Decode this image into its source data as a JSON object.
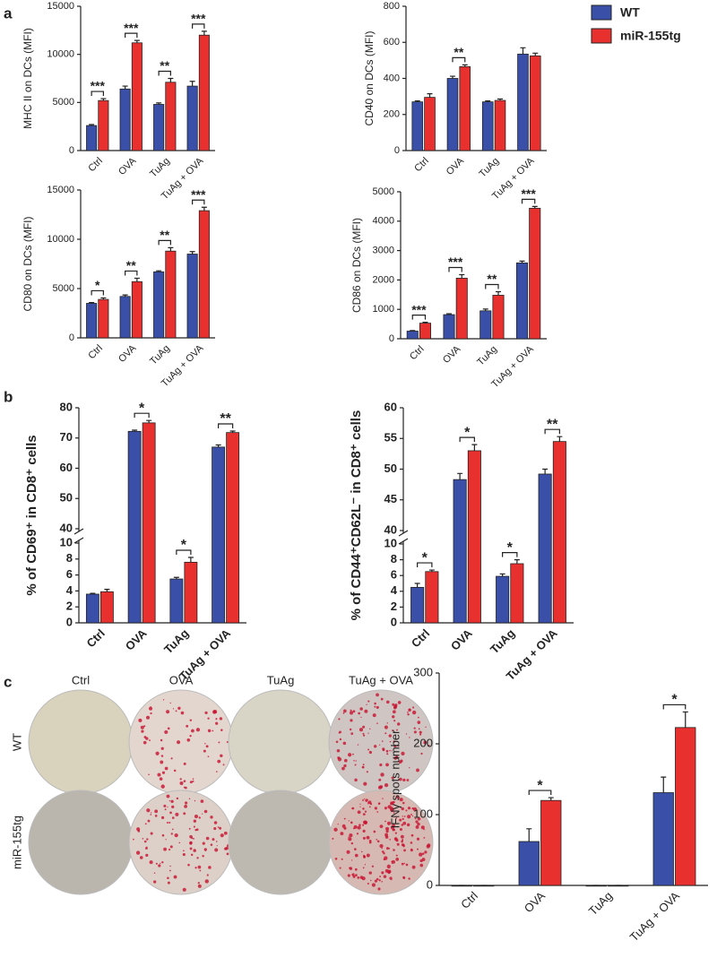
{
  "panel_labels": [
    "a",
    "b",
    "c"
  ],
  "wells": {
    "columns": [
      "Ctrl",
      "OVA",
      "TuAg",
      "TuAg + OVA"
    ],
    "rows": [
      "WT",
      "miR-155tg"
    ]
  },
  "chart_data": [
    {
      "type": "bar",
      "ylabel": "MHC II on DCs (MFI)",
      "categories": [
        "Ctrl",
        "OVA",
        "TuAg",
        "TuAg + OVA"
      ],
      "series": [
        {
          "name": "WT",
          "color": "#3a4fa8",
          "values": [
            2600,
            6400,
            4800,
            6700
          ],
          "errors": [
            100,
            300,
            150,
            500
          ]
        },
        {
          "name": "miR-155tg",
          "color": "#e8302f",
          "values": [
            5200,
            11200,
            7100,
            12000
          ],
          "errors": [
            200,
            250,
            400,
            400
          ]
        }
      ],
      "ylim": [
        0,
        15000
      ],
      "yticks": [
        0,
        5000,
        10000,
        15000
      ],
      "significance": [
        "***",
        "***",
        "**",
        "***"
      ]
    },
    {
      "type": "bar",
      "ylabel": "CD40 on DCs (MFI)",
      "categories": [
        "Ctrl",
        "OVA",
        "TuAg",
        "TuAg + OVA"
      ],
      "series": [
        {
          "name": "WT",
          "color": "#3a4fa8",
          "values": [
            270,
            400,
            270,
            535
          ],
          "errors": [
            5,
            12,
            5,
            35
          ]
        },
        {
          "name": "miR-155tg",
          "color": "#e8302f",
          "values": [
            295,
            465,
            278,
            525
          ],
          "errors": [
            20,
            10,
            8,
            15
          ]
        }
      ],
      "ylim": [
        0,
        800
      ],
      "yticks": [
        0,
        200,
        400,
        600,
        800
      ],
      "significance": [
        null,
        "**",
        null,
        null
      ]
    },
    {
      "type": "bar",
      "ylabel": "CD80 on DCs (MFI)",
      "categories": [
        "Ctrl",
        "OVA",
        "TuAg",
        "TuAg + OVA"
      ],
      "series": [
        {
          "name": "WT",
          "color": "#3a4fa8",
          "values": [
            3500,
            4200,
            6700,
            8500
          ],
          "errors": [
            80,
            150,
            100,
            250
          ]
        },
        {
          "name": "miR-155tg",
          "color": "#e8302f",
          "values": [
            3900,
            5700,
            8800,
            12900
          ],
          "errors": [
            150,
            350,
            350,
            350
          ]
        }
      ],
      "ylim": [
        0,
        15000
      ],
      "yticks": [
        0,
        5000,
        10000,
        15000
      ],
      "significance": [
        "*",
        "**",
        "**",
        "***"
      ]
    },
    {
      "type": "bar",
      "ylabel": "CD86 on DCs (MFI)",
      "categories": [
        "Ctrl",
        "OVA",
        "TuAg",
        "TuAg + OVA"
      ],
      "series": [
        {
          "name": "WT",
          "color": "#3a4fa8",
          "values": [
            260,
            820,
            950,
            2580
          ],
          "errors": [
            20,
            30,
            60,
            60
          ]
        },
        {
          "name": "miR-155tg",
          "color": "#e8302f",
          "values": [
            530,
            2060,
            1480,
            4440
          ],
          "errors": [
            30,
            120,
            120,
            60
          ]
        }
      ],
      "ylim": [
        0,
        5000
      ],
      "yticks": [
        0,
        1000,
        2000,
        3000,
        4000,
        5000
      ],
      "significance": [
        "***",
        "***",
        "**",
        "***"
      ]
    },
    {
      "type": "bar",
      "ylabel": "% of CD69⁺ in CD8⁺ cells",
      "categories": [
        "Ctrl",
        "OVA",
        "TuAg",
        "TuAg + OVA"
      ],
      "series": [
        {
          "name": "WT",
          "color": "#3a4fa8",
          "values": [
            3.6,
            72.2,
            5.5,
            67
          ],
          "errors": [
            0.1,
            0.4,
            0.2,
            0.7
          ]
        },
        {
          "name": "miR-155tg",
          "color": "#e8302f",
          "values": [
            3.9,
            75,
            7.6,
            71.8
          ],
          "errors": [
            0.3,
            0.8,
            0.6,
            0.5
          ]
        }
      ],
      "ylim": [
        0,
        80
      ],
      "ybreak": [
        10,
        40
      ],
      "yticks": [
        0,
        2,
        4,
        6,
        8,
        10,
        40,
        50,
        60,
        70,
        80
      ],
      "significance": [
        null,
        "*",
        "*",
        "**"
      ]
    },
    {
      "type": "bar",
      "ylabel": "% of CD44⁺CD62L⁻ in CD8⁺ cells",
      "categories": [
        "Ctrl",
        "OVA",
        "TuAg",
        "TuAg + OVA"
      ],
      "series": [
        {
          "name": "WT",
          "color": "#3a4fa8",
          "values": [
            4.5,
            48.3,
            5.9,
            49.2
          ],
          "errors": [
            0.5,
            1,
            0.3,
            0.8
          ]
        },
        {
          "name": "miR-155tg",
          "color": "#e8302f",
          "values": [
            6.5,
            53,
            7.5,
            54.5
          ],
          "errors": [
            0.2,
            1,
            0.5,
            0.8
          ]
        }
      ],
      "ylim": [
        0,
        60
      ],
      "ybreak": [
        10,
        40
      ],
      "yticks": [
        0,
        2,
        4,
        6,
        8,
        10,
        40,
        45,
        50,
        55,
        60
      ],
      "significance": [
        "*",
        "*",
        "*",
        "**"
      ]
    },
    {
      "type": "bar",
      "ylabel": "IFNγ spots number",
      "categories": [
        "Ctrl",
        "OVA",
        "TuAg",
        "TuAg + OVA"
      ],
      "series": [
        {
          "name": "WT",
          "color": "#3a4fa8",
          "values": [
            0,
            62,
            0,
            131
          ],
          "errors": [
            0,
            18,
            0,
            22
          ]
        },
        {
          "name": "miR-155tg",
          "color": "#e8302f",
          "values": [
            0,
            120,
            0,
            223
          ],
          "errors": [
            0,
            4,
            0,
            22
          ]
        }
      ],
      "ylim": [
        0,
        300
      ],
      "yticks": [
        0,
        100,
        200,
        300
      ],
      "significance": [
        null,
        "*",
        null,
        "*"
      ]
    }
  ]
}
